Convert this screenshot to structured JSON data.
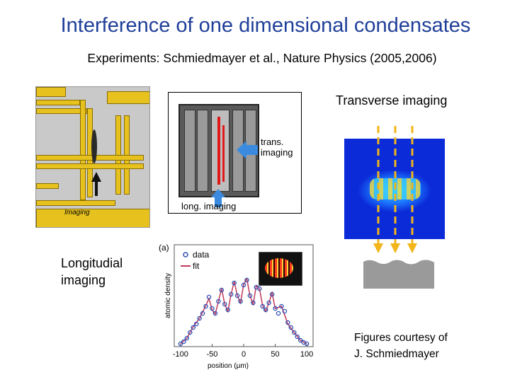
{
  "title": "Interference of one dimensional condensates",
  "subtitle": "Experiments: Schmiedmayer et al., Nature Physics (2005,2006)",
  "chip": {
    "imaging_label": "Imaging"
  },
  "schematic": {
    "trans_line1": "trans.",
    "trans_line2": "imaging",
    "long_label": "long. imaging"
  },
  "transverse_label": "Transverse imaging",
  "longitudinal_line1": "Longitudial",
  "longitudinal_line2": "imaging",
  "credit_line1": "Figures courtesy of",
  "credit_line2": "J. Schmiedmayer",
  "colors": {
    "title": "#1f3f99",
    "data": "#2b4fb5",
    "fit": "#c0395a",
    "beam": "#f2b51a",
    "arrow": "#3a8be0"
  },
  "chart_data": {
    "type": "scatter",
    "panel_label": "(a)",
    "xlabel": "position (μm)",
    "ylabel": "atomic density",
    "xlim": [
      -110,
      110
    ],
    "x_ticks": [
      "-100",
      "-50",
      "0",
      "50",
      "100"
    ],
    "legend": [
      "data",
      "fit"
    ],
    "series": [
      {
        "name": "data",
        "x": [
          -100,
          -95,
          -90,
          -85,
          -80,
          -75,
          -70,
          -65,
          -60,
          -55,
          -50,
          -45,
          -40,
          -35,
          -30,
          -25,
          -20,
          -15,
          -10,
          -5,
          0,
          5,
          10,
          15,
          20,
          25,
          30,
          35,
          40,
          45,
          50,
          55,
          60,
          65,
          70,
          75,
          80,
          85,
          90,
          95,
          100
        ],
        "y": [
          0.02,
          0.05,
          0.1,
          0.18,
          0.25,
          0.3,
          0.38,
          0.45,
          0.55,
          0.68,
          0.52,
          0.45,
          0.62,
          0.78,
          0.58,
          0.5,
          0.72,
          0.88,
          0.7,
          0.62,
          0.85,
          0.92,
          0.7,
          0.6,
          0.82,
          0.8,
          0.55,
          0.5,
          0.6,
          0.72,
          0.52,
          0.45,
          0.55,
          0.48,
          0.32,
          0.25,
          0.18,
          0.12,
          0.07,
          0.04,
          0.02
        ]
      },
      {
        "name": "fit",
        "x": [
          -100,
          -90,
          -80,
          -70,
          -60,
          -55,
          -50,
          -45,
          -40,
          -35,
          -30,
          -25,
          -20,
          -15,
          -10,
          -5,
          0,
          5,
          10,
          15,
          20,
          25,
          30,
          35,
          40,
          45,
          50,
          60,
          70,
          80,
          90,
          100
        ],
        "y": [
          0.02,
          0.1,
          0.26,
          0.38,
          0.56,
          0.66,
          0.5,
          0.44,
          0.62,
          0.8,
          0.58,
          0.48,
          0.72,
          0.9,
          0.7,
          0.6,
          0.86,
          0.94,
          0.7,
          0.58,
          0.84,
          0.8,
          0.56,
          0.48,
          0.6,
          0.74,
          0.52,
          0.55,
          0.3,
          0.18,
          0.07,
          0.02
        ]
      }
    ]
  }
}
